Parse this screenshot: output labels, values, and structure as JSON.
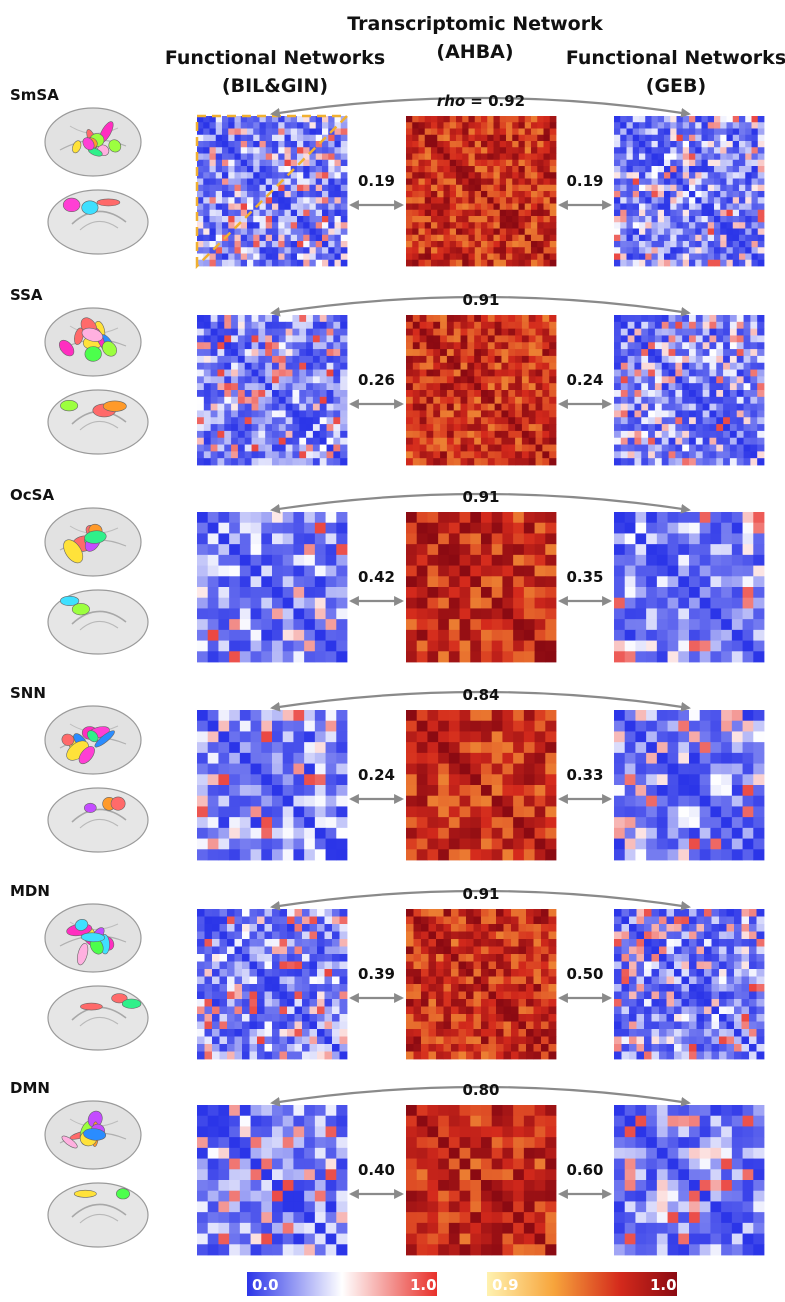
{
  "headers": {
    "center_line1": "Transcriptomic Network",
    "center_line2": "(AHBA)",
    "left_line1": "Functional Networks",
    "left_line2": "(BIL&GIN)",
    "right_line1": "Functional Networks",
    "right_line2": "(GEB)"
  },
  "rows": [
    {
      "network": "SmSA",
      "top_prefix": "rho",
      "top_value": "= 0.92",
      "left_corr": "0.19",
      "right_corr": "0.19",
      "size": 24,
      "regions": 10
    },
    {
      "network": "SSA",
      "top_prefix": "",
      "top_value": "0.91",
      "left_corr": "0.26",
      "right_corr": "0.24",
      "size": 22,
      "regions": 10
    },
    {
      "network": "OcSA",
      "top_prefix": "",
      "top_value": "0.91",
      "left_corr": "0.42",
      "right_corr": "0.35",
      "size": 14,
      "regions": 8
    },
    {
      "network": "SNN",
      "top_prefix": "",
      "top_value": "0.84",
      "left_corr": "0.24",
      "right_corr": "0.33",
      "size": 14,
      "regions": 9
    },
    {
      "network": "MDN",
      "top_prefix": "",
      "top_value": "0.91",
      "left_corr": "0.39",
      "right_corr": "0.50",
      "size": 20,
      "regions": 10
    },
    {
      "network": "DMN",
      "top_prefix": "",
      "top_value": "0.80",
      "left_corr": "0.40",
      "right_corr": "0.60",
      "size": 14,
      "regions": 8
    }
  ],
  "colorbars": {
    "left_min": "0.0",
    "left_max": "1.0",
    "right_min": "0.9",
    "right_max": "1.0"
  },
  "colors": {
    "arrow": "#8a8a8a",
    "dashed_box": "#f0b030",
    "blue": "#2b35e8",
    "red": "#e8302a",
    "dark_red": "#8b0a12",
    "pale_yellow": "#fff2b0"
  }
}
